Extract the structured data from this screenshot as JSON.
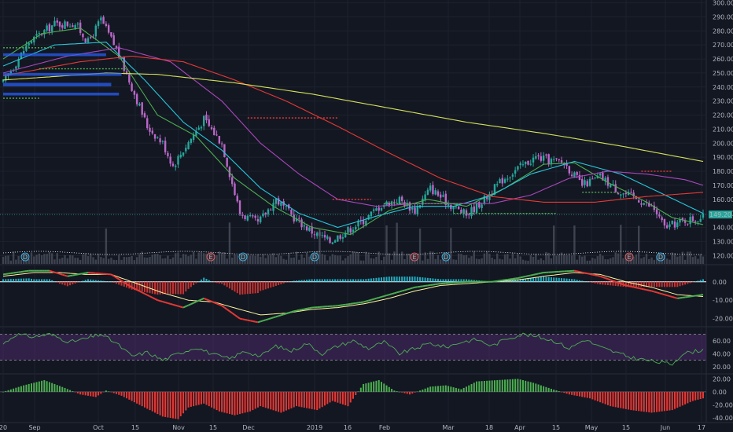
{
  "chart_data": [
    {
      "type": "candlestick",
      "name": "",
      "x_labels": [
        "20",
        "Sep",
        "Oct",
        "15",
        "Nov",
        "15",
        "Dec",
        "2019",
        "16",
        "Feb",
        "Mar",
        "18",
        "Apr",
        "15",
        "May",
        "15",
        "Jun",
        "17"
      ],
      "y_ticks": [
        "300.00",
        "290.00",
        "280.00",
        "270.00",
        "260.00",
        "250.00",
        "240.00",
        "230.00",
        "220.00",
        "210.00",
        "200.00",
        "190.00",
        "180.00",
        "170.00",
        "160.00",
        "150.00",
        "140.00",
        "130.00",
        "120.00"
      ],
      "ylim": [
        114,
        302
      ],
      "last_price": "149.20",
      "event_markers": [
        "D",
        "E",
        "D",
        "D",
        "E",
        "D",
        "E",
        "D"
      ],
      "keypoints": [
        [
          0,
          243
        ],
        [
          10,
          272
        ],
        [
          20,
          285
        ],
        [
          28,
          285
        ],
        [
          33,
          272
        ],
        [
          38,
          288
        ],
        [
          44,
          267
        ],
        [
          50,
          240
        ],
        [
          56,
          212
        ],
        [
          62,
          200
        ],
        [
          66,
          184
        ],
        [
          71,
          198
        ],
        [
          78,
          217
        ],
        [
          85,
          200
        ],
        [
          92,
          150
        ],
        [
          99,
          143
        ],
        [
          106,
          160
        ],
        [
          113,
          147
        ],
        [
          120,
          137
        ],
        [
          127,
          130
        ],
        [
          133,
          137
        ],
        [
          140,
          145
        ],
        [
          147,
          156
        ],
        [
          154,
          160
        ],
        [
          160,
          152
        ],
        [
          166,
          168
        ],
        [
          173,
          157
        ],
        [
          180,
          149
        ],
        [
          187,
          160
        ],
        [
          194,
          174
        ],
        [
          200,
          182
        ],
        [
          207,
          190
        ],
        [
          212,
          188
        ],
        [
          218,
          186
        ],
        [
          225,
          170
        ],
        [
          232,
          176
        ],
        [
          240,
          165
        ],
        [
          247,
          160
        ],
        [
          253,
          153
        ],
        [
          257,
          140
        ],
        [
          265,
          145
        ],
        [
          272,
          147
        ]
      ],
      "colors": {
        "up": "#26a69a",
        "down": "#ba68c8",
        "background": "#131722"
      },
      "moving_averages": [
        {
          "color": "#4caf50",
          "keypoints": [
            [
              0,
              260
            ],
            [
              15,
              278
            ],
            [
              30,
              282
            ],
            [
              45,
              262
            ],
            [
              60,
              220
            ],
            [
              75,
              205
            ],
            [
              90,
              175
            ],
            [
              105,
              155
            ],
            [
              120,
              140
            ],
            [
              135,
              135
            ],
            [
              150,
              152
            ],
            [
              165,
              160
            ],
            [
              180,
              155
            ],
            [
              195,
              168
            ],
            [
              210,
              185
            ],
            [
              222,
              186
            ],
            [
              235,
              172
            ],
            [
              250,
              158
            ],
            [
              260,
              147
            ],
            [
              272,
              142
            ]
          ]
        },
        {
          "color": "#26c6da",
          "keypoints": [
            [
              0,
              255
            ],
            [
              20,
              270
            ],
            [
              40,
              272
            ],
            [
              55,
              245
            ],
            [
              70,
              215
            ],
            [
              85,
              195
            ],
            [
              100,
              168
            ],
            [
              115,
              150
            ],
            [
              130,
              140
            ],
            [
              145,
              148
            ],
            [
              160,
              155
            ],
            [
              175,
              155
            ],
            [
              190,
              163
            ],
            [
              205,
              178
            ],
            [
              222,
              187
            ],
            [
              240,
              178
            ],
            [
              255,
              165
            ],
            [
              272,
              150
            ]
          ]
        },
        {
          "color": "#ab47bc",
          "keypoints": [
            [
              0,
              250
            ],
            [
              25,
              262
            ],
            [
              45,
              268
            ],
            [
              65,
              258
            ],
            [
              85,
              230
            ],
            [
              100,
              200
            ],
            [
              115,
              178
            ],
            [
              130,
              160
            ],
            [
              145,
              155
            ],
            [
              160,
              157
            ],
            [
              175,
              157
            ],
            [
              190,
              157
            ],
            [
              205,
              163
            ],
            [
              220,
              175
            ],
            [
              235,
              180
            ],
            [
              250,
              178
            ],
            [
              265,
              174
            ],
            [
              272,
              170
            ]
          ]
        },
        {
          "color": "#e53935",
          "keypoints": [
            [
              0,
              248
            ],
            [
              30,
              258
            ],
            [
              50,
              262
            ],
            [
              70,
              258
            ],
            [
              90,
              245
            ],
            [
              110,
              230
            ],
            [
              130,
              212
            ],
            [
              150,
              193
            ],
            [
              170,
              175
            ],
            [
              190,
              162
            ],
            [
              210,
              158
            ],
            [
              230,
              158
            ],
            [
              250,
              162
            ],
            [
              272,
              165
            ]
          ]
        },
        {
          "color": "#d4e157",
          "keypoints": [
            [
              0,
              245
            ],
            [
              40,
              250
            ],
            [
              60,
              249
            ],
            [
              90,
              243
            ],
            [
              120,
              235
            ],
            [
              150,
              225
            ],
            [
              180,
              215
            ],
            [
              210,
              207
            ],
            [
              240,
              198
            ],
            [
              272,
              187
            ]
          ]
        }
      ]
    },
    {
      "type": "macd",
      "y_ticks": [
        "0.00",
        "-10.00",
        "-20.00"
      ],
      "ylim": [
        -24,
        8
      ],
      "macd_line": [
        [
          0,
          4
        ],
        [
          10,
          6
        ],
        [
          18,
          6
        ],
        [
          25,
          3
        ],
        [
          33,
          5
        ],
        [
          42,
          4
        ],
        [
          50,
          -3
        ],
        [
          60,
          -10
        ],
        [
          70,
          -14
        ],
        [
          78,
          -9
        ],
        [
          85,
          -13
        ],
        [
          92,
          -20
        ],
        [
          99,
          -22
        ],
        [
          106,
          -19
        ],
        [
          113,
          -16
        ],
        [
          120,
          -14
        ],
        [
          130,
          -13
        ],
        [
          140,
          -11
        ],
        [
          150,
          -7
        ],
        [
          160,
          -3
        ],
        [
          170,
          -1
        ],
        [
          180,
          0
        ],
        [
          190,
          0
        ],
        [
          200,
          2
        ],
        [
          210,
          5
        ],
        [
          222,
          6
        ],
        [
          232,
          3
        ],
        [
          242,
          -2
        ],
        [
          252,
          -5
        ],
        [
          262,
          -9
        ],
        [
          272,
          -7
        ]
      ],
      "signal_line": [
        [
          0,
          3
        ],
        [
          12,
          5
        ],
        [
          22,
          5
        ],
        [
          32,
          4
        ],
        [
          42,
          4
        ],
        [
          52,
          -1
        ],
        [
          62,
          -6
        ],
        [
          72,
          -10
        ],
        [
          82,
          -11
        ],
        [
          92,
          -15
        ],
        [
          100,
          -18
        ],
        [
          110,
          -17
        ],
        [
          120,
          -15
        ],
        [
          130,
          -14
        ],
        [
          140,
          -12
        ],
        [
          150,
          -9
        ],
        [
          160,
          -5
        ],
        [
          170,
          -2
        ],
        [
          180,
          -1
        ],
        [
          190,
          0
        ],
        [
          200,
          1
        ],
        [
          210,
          3
        ],
        [
          222,
          5
        ],
        [
          232,
          4
        ],
        [
          242,
          0
        ],
        [
          252,
          -3
        ],
        [
          262,
          -7
        ],
        [
          272,
          -8
        ]
      ]
    },
    {
      "type": "rsi",
      "y_ticks": [
        "60.00",
        "40.00",
        "20.00"
      ],
      "ylim": [
        10,
        78
      ],
      "band": [
        30,
        70
      ],
      "keypoints": [
        [
          0,
          55
        ],
        [
          5,
          70
        ],
        [
          12,
          66
        ],
        [
          18,
          70
        ],
        [
          26,
          58
        ],
        [
          33,
          64
        ],
        [
          38,
          70
        ],
        [
          44,
          56
        ],
        [
          50,
          36
        ],
        [
          56,
          42
        ],
        [
          62,
          30
        ],
        [
          68,
          40
        ],
        [
          75,
          50
        ],
        [
          82,
          38
        ],
        [
          88,
          32
        ],
        [
          94,
          44
        ],
        [
          100,
          36
        ],
        [
          106,
          52
        ],
        [
          112,
          44
        ],
        [
          118,
          56
        ],
        [
          124,
          40
        ],
        [
          130,
          52
        ],
        [
          136,
          60
        ],
        [
          142,
          48
        ],
        [
          148,
          58
        ],
        [
          154,
          40
        ],
        [
          160,
          48
        ],
        [
          166,
          56
        ],
        [
          172,
          50
        ],
        [
          178,
          58
        ],
        [
          184,
          62
        ],
        [
          190,
          52
        ],
        [
          196,
          64
        ],
        [
          202,
          70
        ],
        [
          208,
          66
        ],
        [
          214,
          60
        ],
        [
          220,
          48
        ],
        [
          226,
          62
        ],
        [
          232,
          50
        ],
        [
          238,
          42
        ],
        [
          244,
          34
        ],
        [
          250,
          30
        ],
        [
          256,
          26
        ],
        [
          260,
          24
        ],
        [
          264,
          40
        ],
        [
          272,
          46
        ]
      ]
    },
    {
      "type": "histogram",
      "y_ticks": [
        "20.00",
        "0.00",
        "-20.00",
        "-40.00"
      ],
      "ylim": [
        -46,
        24
      ],
      "keypoints": [
        [
          0,
          0
        ],
        [
          8,
          10
        ],
        [
          16,
          18
        ],
        [
          24,
          6
        ],
        [
          30,
          -4
        ],
        [
          36,
          -8
        ],
        [
          40,
          2
        ],
        [
          46,
          -6
        ],
        [
          54,
          -22
        ],
        [
          62,
          -38
        ],
        [
          68,
          -42
        ],
        [
          72,
          -24
        ],
        [
          78,
          -18
        ],
        [
          84,
          -30
        ],
        [
          90,
          -36
        ],
        [
          96,
          -30
        ],
        [
          100,
          -22
        ],
        [
          108,
          -32
        ],
        [
          114,
          -22
        ],
        [
          122,
          -28
        ],
        [
          128,
          -14
        ],
        [
          134,
          -22
        ],
        [
          140,
          12
        ],
        [
          146,
          18
        ],
        [
          152,
          2
        ],
        [
          158,
          -4
        ],
        [
          166,
          8
        ],
        [
          172,
          10
        ],
        [
          178,
          4
        ],
        [
          184,
          16
        ],
        [
          192,
          18
        ],
        [
          200,
          20
        ],
        [
          206,
          14
        ],
        [
          212,
          6
        ],
        [
          220,
          -4
        ],
        [
          228,
          -10
        ],
        [
          236,
          -22
        ],
        [
          244,
          -28
        ],
        [
          252,
          -32
        ],
        [
          260,
          -28
        ],
        [
          268,
          -14
        ],
        [
          272,
          -10
        ]
      ]
    }
  ]
}
